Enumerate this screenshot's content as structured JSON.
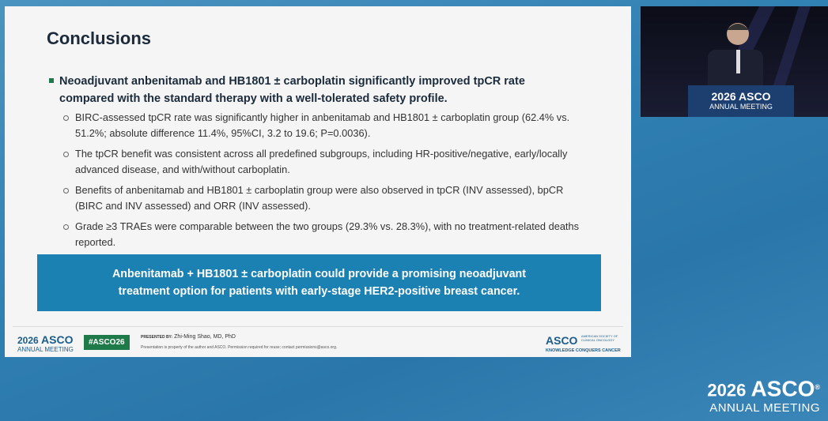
{
  "slide": {
    "title": "Conclusions",
    "main_bullet": "Neoadjuvant anbenitamab and HB1801 ± carboplatin significantly improved tpCR rate compared with the standard therapy with a  well-tolerated safety profile.",
    "sub_bullets": [
      "BIRC-assessed tpCR rate was significantly higher in anbenitamab and HB1801 ± carboplatin group (62.4% vs. 51.2%; absolute difference 11.4%, 95%CI, 3.2 to 19.6; P=0.0036).",
      "The tpCR benefit was consistent across all predefined subgroups, including HR-positive/negative, early/locally advanced disease, and with/without carboplatin.",
      "Benefits of anbenitamab and HB1801 ± carboplatin group were also observed in tpCR (INV assessed), bpCR (BIRC and INV assessed) and ORR (INV assessed).",
      "Grade ≥3 TRAEs were comparable between the two groups (29.3% vs. 28.3%), with no treatment-related deaths reported."
    ],
    "callout": "Anbenitamab + HB1801 ± carboplatin could provide a promising neoadjuvant treatment option for patients with early-stage HER2-positive breast cancer.",
    "footer": {
      "logo_year": "2026",
      "logo_name": "ASCO",
      "logo_sub": "ANNUAL MEETING",
      "hashtag": "#ASCO26",
      "presented_by_label": "PRESENTED BY:",
      "presenter": "Zhi-Ming Shao, MD, PhD",
      "notice": "Presentation is property of the author and ASCO. Permission required for reuse; contact permissions@asco.org.",
      "org_logo": "ASCO",
      "org_name": "AMERICAN SOCIETY OF CLINICAL ONCOLOGY",
      "org_tagline": "KNOWLEDGE CONQUERS CANCER"
    }
  },
  "video": {
    "podium_year": "2026",
    "podium_name": "ASCO",
    "podium_sub": "ANNUAL MEETING"
  },
  "overlay_logo": {
    "year": "2026",
    "name": "ASCO",
    "registered": "®",
    "sub": "ANNUAL MEETING"
  }
}
